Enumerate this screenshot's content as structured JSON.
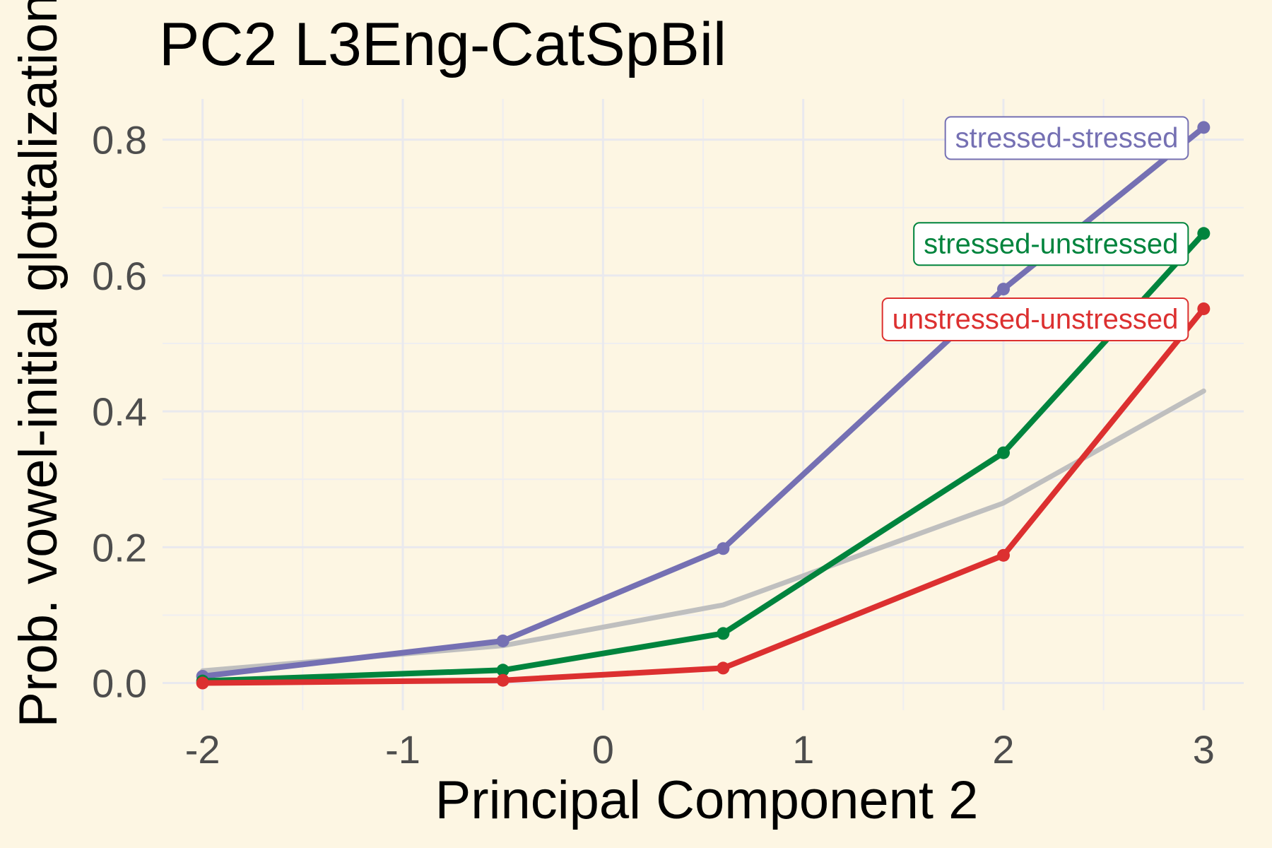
{
  "chart_data": {
    "type": "line",
    "title": "PC2 L3Eng-CatSpBil",
    "xlabel": "Principal Component 2",
    "ylabel": "Prob. vowel-initial glottalization",
    "xlim": [
      -2.2,
      3.2
    ],
    "ylim": [
      -0.04,
      0.86
    ],
    "x_ticks": [
      -2,
      -1,
      0,
      1,
      2,
      3
    ],
    "x_tick_labels": [
      "-2",
      "-1",
      "0",
      "1",
      "2",
      "3"
    ],
    "y_ticks": [
      0.0,
      0.2,
      0.4,
      0.6,
      0.8
    ],
    "y_tick_labels": [
      "0.0",
      "0.2",
      "0.4",
      "0.6",
      "0.8"
    ],
    "grid": true,
    "reference_line": {
      "color": "#bfbfbf",
      "x": [
        -2,
        -0.5,
        0.6,
        2,
        3
      ],
      "y": [
        0.018,
        0.055,
        0.115,
        0.265,
        0.43
      ]
    },
    "series": [
      {
        "name": "stressed-stressed",
        "color": "#7570b3",
        "x": [
          -2,
          -0.5,
          0.6,
          2,
          3
        ],
        "y": [
          0.01,
          0.062,
          0.198,
          0.58,
          0.818
        ]
      },
      {
        "name": "stressed-unstressed",
        "color": "#00843d",
        "x": [
          -2,
          -0.5,
          0.6,
          2,
          3
        ],
        "y": [
          0.003,
          0.019,
          0.073,
          0.339,
          0.662
        ]
      },
      {
        "name": "unstressed-unstressed",
        "color": "#dc3030",
        "x": [
          -2,
          -0.5,
          0.6,
          2,
          3
        ],
        "y": [
          0.0,
          0.004,
          0.022,
          0.188,
          0.551
        ]
      }
    ],
    "label_placement": "right-end"
  }
}
